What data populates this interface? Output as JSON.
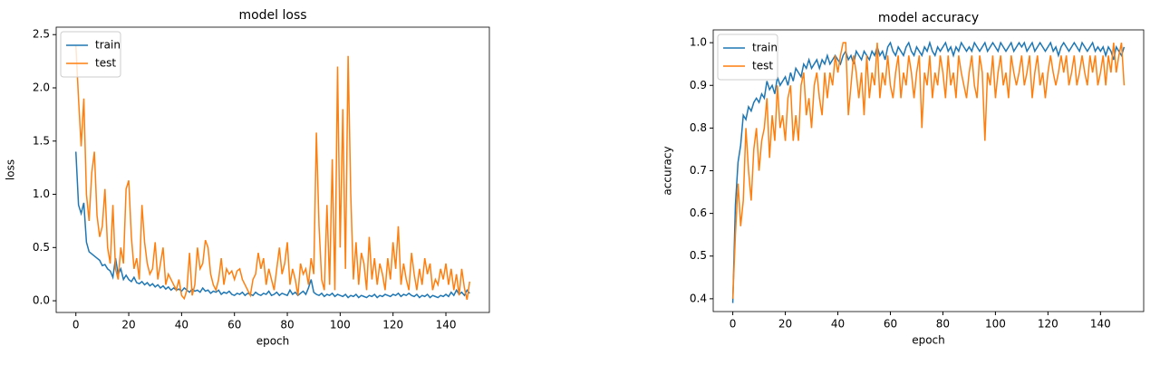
{
  "chart_data": [
    {
      "type": "line",
      "title": "model loss",
      "xlabel": "epoch",
      "ylabel": "loss",
      "legend": "upper left",
      "x": [
        0,
        1,
        2,
        3,
        4,
        5,
        6,
        7,
        8,
        9,
        10,
        11,
        12,
        13,
        14,
        15,
        16,
        17,
        18,
        19,
        20,
        21,
        22,
        23,
        24,
        25,
        26,
        27,
        28,
        29,
        30,
        31,
        32,
        33,
        34,
        35,
        36,
        37,
        38,
        39,
        40,
        41,
        42,
        43,
        44,
        45,
        46,
        47,
        48,
        49,
        50,
        51,
        52,
        53,
        54,
        55,
        56,
        57,
        58,
        59,
        60,
        61,
        62,
        63,
        64,
        65,
        66,
        67,
        68,
        69,
        70,
        71,
        72,
        73,
        74,
        75,
        76,
        77,
        78,
        79,
        80,
        81,
        82,
        83,
        84,
        85,
        86,
        87,
        88,
        89,
        90,
        91,
        92,
        93,
        94,
        95,
        96,
        97,
        98,
        99,
        100,
        101,
        102,
        103,
        104,
        105,
        106,
        107,
        108,
        109,
        110,
        111,
        112,
        113,
        114,
        115,
        116,
        117,
        118,
        119,
        120,
        121,
        122,
        123,
        124,
        125,
        126,
        127,
        128,
        129,
        130,
        131,
        132,
        133,
        134,
        135,
        136,
        137,
        138,
        139,
        140,
        141,
        142,
        143,
        144,
        145,
        146,
        147,
        148,
        149
      ],
      "series": [
        {
          "name": "train",
          "color": "#1f77b4",
          "values": [
            1.4,
            0.9,
            0.82,
            0.92,
            0.55,
            0.46,
            0.44,
            0.42,
            0.4,
            0.38,
            0.33,
            0.34,
            0.3,
            0.28,
            0.22,
            0.4,
            0.25,
            0.3,
            0.2,
            0.24,
            0.2,
            0.18,
            0.22,
            0.17,
            0.16,
            0.18,
            0.15,
            0.17,
            0.14,
            0.16,
            0.13,
            0.15,
            0.12,
            0.14,
            0.11,
            0.13,
            0.1,
            0.12,
            0.1,
            0.11,
            0.09,
            0.12,
            0.1,
            0.08,
            0.11,
            0.09,
            0.1,
            0.08,
            0.12,
            0.09,
            0.1,
            0.07,
            0.09,
            0.08,
            0.1,
            0.06,
            0.08,
            0.07,
            0.09,
            0.06,
            0.05,
            0.07,
            0.06,
            0.08,
            0.05,
            0.07,
            0.06,
            0.05,
            0.08,
            0.06,
            0.05,
            0.07,
            0.06,
            0.09,
            0.05,
            0.06,
            0.08,
            0.05,
            0.07,
            0.06,
            0.05,
            0.1,
            0.06,
            0.08,
            0.05,
            0.07,
            0.09,
            0.06,
            0.12,
            0.2,
            0.08,
            0.06,
            0.05,
            0.07,
            0.04,
            0.06,
            0.05,
            0.07,
            0.04,
            0.06,
            0.05,
            0.04,
            0.06,
            0.03,
            0.05,
            0.04,
            0.06,
            0.03,
            0.05,
            0.04,
            0.03,
            0.05,
            0.04,
            0.06,
            0.03,
            0.05,
            0.04,
            0.06,
            0.05,
            0.04,
            0.06,
            0.05,
            0.07,
            0.04,
            0.06,
            0.05,
            0.07,
            0.05,
            0.04,
            0.06,
            0.03,
            0.05,
            0.04,
            0.06,
            0.03,
            0.05,
            0.04,
            0.03,
            0.05,
            0.04,
            0.06,
            0.04,
            0.08,
            0.05,
            0.1,
            0.06,
            0.08,
            0.05,
            0.1,
            0.07
          ]
        },
        {
          "name": "test",
          "color": "#ff7f0e",
          "values": [
            2.4,
            1.9,
            1.45,
            1.9,
            1.0,
            0.75,
            1.2,
            1.4,
            0.8,
            0.6,
            0.7,
            1.05,
            0.5,
            0.35,
            0.9,
            0.3,
            0.2,
            0.5,
            0.35,
            1.05,
            1.13,
            0.6,
            0.3,
            0.4,
            0.2,
            0.9,
            0.55,
            0.35,
            0.25,
            0.3,
            0.55,
            0.2,
            0.35,
            0.5,
            0.15,
            0.25,
            0.2,
            0.15,
            0.1,
            0.2,
            0.05,
            0.02,
            0.1,
            0.45,
            0.05,
            0.15,
            0.5,
            0.3,
            0.35,
            0.57,
            0.5,
            0.25,
            0.15,
            0.1,
            0.2,
            0.4,
            0.15,
            0.3,
            0.25,
            0.28,
            0.2,
            0.28,
            0.3,
            0.2,
            0.15,
            0.1,
            0.05,
            0.2,
            0.25,
            0.45,
            0.3,
            0.4,
            0.15,
            0.3,
            0.2,
            0.1,
            0.3,
            0.5,
            0.25,
            0.35,
            0.55,
            0.15,
            0.3,
            0.2,
            0.05,
            0.35,
            0.25,
            0.3,
            0.15,
            0.4,
            0.25,
            1.58,
            0.7,
            0.2,
            0.1,
            0.9,
            0.15,
            1.33,
            0.1,
            2.2,
            0.5,
            1.8,
            0.3,
            2.3,
            1.0,
            0.2,
            0.55,
            0.15,
            0.45,
            0.35,
            0.1,
            0.6,
            0.2,
            0.4,
            0.15,
            0.35,
            0.25,
            0.1,
            0.4,
            0.2,
            0.55,
            0.3,
            0.7,
            0.15,
            0.35,
            0.2,
            0.1,
            0.45,
            0.25,
            0.1,
            0.3,
            0.15,
            0.4,
            0.25,
            0.35,
            0.1,
            0.2,
            0.15,
            0.3,
            0.2,
            0.35,
            0.15,
            0.3,
            0.1,
            0.25,
            0.05,
            0.3,
            0.12,
            0.01,
            0.18
          ]
        }
      ],
      "xlim": [
        -7.45,
        156.45
      ],
      "xticks": [
        0,
        20,
        40,
        60,
        80,
        100,
        120,
        140
      ],
      "ylim": [
        -0.11,
        2.57
      ],
      "yticks": [
        {
          "value": 0,
          "label": "0.0"
        },
        0.5,
        {
          "value": 1,
          "label": "1.0"
        },
        1.5,
        {
          "value": 2,
          "label": "2.0"
        },
        2.5
      ]
    },
    {
      "type": "line",
      "title": "model accuracy",
      "xlabel": "epoch",
      "ylabel": "accuracy",
      "legend": "upper left",
      "x": [
        0,
        1,
        2,
        3,
        4,
        5,
        6,
        7,
        8,
        9,
        10,
        11,
        12,
        13,
        14,
        15,
        16,
        17,
        18,
        19,
        20,
        21,
        22,
        23,
        24,
        25,
        26,
        27,
        28,
        29,
        30,
        31,
        32,
        33,
        34,
        35,
        36,
        37,
        38,
        39,
        40,
        41,
        42,
        43,
        44,
        45,
        46,
        47,
        48,
        49,
        50,
        51,
        52,
        53,
        54,
        55,
        56,
        57,
        58,
        59,
        60,
        61,
        62,
        63,
        64,
        65,
        66,
        67,
        68,
        69,
        70,
        71,
        72,
        73,
        74,
        75,
        76,
        77,
        78,
        79,
        80,
        81,
        82,
        83,
        84,
        85,
        86,
        87,
        88,
        89,
        90,
        91,
        92,
        93,
        94,
        95,
        96,
        97,
        98,
        99,
        100,
        101,
        102,
        103,
        104,
        105,
        106,
        107,
        108,
        109,
        110,
        111,
        112,
        113,
        114,
        115,
        116,
        117,
        118,
        119,
        120,
        121,
        122,
        123,
        124,
        125,
        126,
        127,
        128,
        129,
        130,
        131,
        132,
        133,
        134,
        135,
        136,
        137,
        138,
        139,
        140,
        141,
        142,
        143,
        144,
        145,
        146,
        147,
        148,
        149
      ],
      "series": [
        {
          "name": "train",
          "color": "#1f77b4",
          "values": [
            0.39,
            0.62,
            0.72,
            0.76,
            0.83,
            0.82,
            0.85,
            0.84,
            0.86,
            0.87,
            0.86,
            0.88,
            0.87,
            0.91,
            0.89,
            0.9,
            0.88,
            0.92,
            0.9,
            0.91,
            0.92,
            0.9,
            0.93,
            0.91,
            0.94,
            0.93,
            0.92,
            0.95,
            0.94,
            0.96,
            0.94,
            0.95,
            0.96,
            0.94,
            0.96,
            0.95,
            0.97,
            0.95,
            0.96,
            0.97,
            0.96,
            0.95,
            0.97,
            0.98,
            0.96,
            0.97,
            0.95,
            0.98,
            0.97,
            0.96,
            0.98,
            0.97,
            0.96,
            0.98,
            0.97,
            0.99,
            0.97,
            0.98,
            0.96,
            0.99,
            1.0,
            0.98,
            0.97,
            0.99,
            0.98,
            0.97,
            0.99,
            1.0,
            0.98,
            0.97,
            0.99,
            0.98,
            0.97,
            0.99,
            0.98,
            1.0,
            0.98,
            0.97,
            0.99,
            0.98,
            0.99,
            1.0,
            0.98,
            0.99,
            0.97,
            0.99,
            0.98,
            1.0,
            0.99,
            0.98,
            0.99,
            0.98,
            1.0,
            0.99,
            0.98,
            0.99,
            1.0,
            0.98,
            0.99,
            1.0,
            0.99,
            0.98,
            1.0,
            0.99,
            0.98,
            0.99,
            1.0,
            0.98,
            0.99,
            1.0,
            0.99,
            1.0,
            0.98,
            0.99,
            1.0,
            0.98,
            0.99,
            1.0,
            0.99,
            0.98,
            0.99,
            1.0,
            0.98,
            0.99,
            0.97,
            0.99,
            1.0,
            0.99,
            0.98,
            0.99,
            1.0,
            0.99,
            0.98,
            1.0,
            0.99,
            0.98,
            0.99,
            1.0,
            0.98,
            0.99,
            0.98,
            0.99,
            0.97,
            0.99,
            0.98,
            0.96,
            0.99,
            0.98,
            0.97,
            0.99
          ]
        },
        {
          "name": "test",
          "color": "#ff7f0e",
          "values": [
            0.4,
            0.55,
            0.67,
            0.57,
            0.63,
            0.8,
            0.7,
            0.63,
            0.75,
            0.8,
            0.7,
            0.77,
            0.8,
            0.87,
            0.73,
            0.83,
            0.77,
            0.9,
            0.8,
            0.83,
            0.77,
            0.87,
            0.9,
            0.77,
            0.83,
            0.77,
            0.9,
            0.93,
            0.83,
            0.87,
            0.8,
            0.9,
            0.93,
            0.87,
            0.83,
            0.93,
            0.87,
            0.93,
            0.9,
            0.97,
            0.93,
            0.97,
            1.0,
            1.0,
            0.83,
            0.9,
            0.97,
            0.93,
            0.87,
            0.93,
            0.83,
            0.97,
            0.87,
            0.93,
            0.9,
            1.0,
            0.87,
            0.93,
            0.9,
            0.97,
            0.9,
            0.87,
            0.93,
            0.97,
            0.87,
            0.93,
            0.9,
            0.97,
            0.93,
            0.87,
            0.93,
            0.97,
            0.8,
            0.93,
            0.9,
            0.97,
            0.87,
            0.93,
            0.9,
            0.97,
            0.93,
            0.87,
            0.97,
            0.9,
            0.93,
            0.87,
            0.97,
            0.93,
            0.9,
            0.87,
            0.93,
            0.97,
            0.9,
            0.87,
            0.97,
            0.93,
            0.77,
            0.93,
            0.9,
            0.97,
            0.87,
            0.93,
            0.97,
            0.9,
            0.93,
            0.87,
            0.97,
            0.93,
            0.9,
            0.93,
            0.97,
            0.9,
            0.93,
            0.97,
            0.87,
            0.93,
            0.97,
            0.9,
            0.93,
            0.87,
            0.93,
            0.97,
            0.93,
            0.9,
            0.93,
            0.97,
            0.93,
            0.97,
            0.9,
            0.93,
            0.97,
            0.9,
            0.93,
            0.97,
            0.93,
            0.9,
            0.97,
            0.93,
            0.97,
            0.9,
            0.93,
            0.97,
            0.9,
            0.97,
            0.93,
            1.0,
            0.93,
            0.97,
            1.0,
            0.9
          ]
        }
      ],
      "xlim": [
        -7.45,
        156.45
      ],
      "xticks": [
        0,
        20,
        40,
        60,
        80,
        100,
        120,
        140
      ],
      "ylim": [
        0.37,
        1.03
      ],
      "yticks": [
        0.4,
        0.5,
        0.6,
        0.7,
        0.8,
        0.9,
        {
          "value": 1,
          "label": "1.0"
        }
      ]
    }
  ]
}
